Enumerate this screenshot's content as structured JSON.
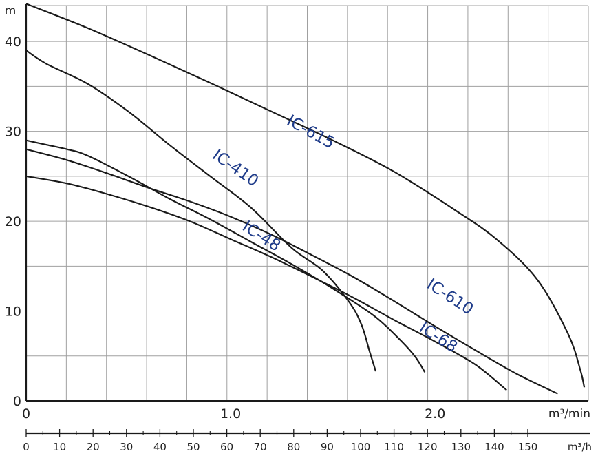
{
  "chart_data": {
    "type": "line",
    "title": "",
    "ylabel": "m",
    "xlabel": "m³/min",
    "xlabel_secondary": "m³/h",
    "ylim": [
      0,
      44
    ],
    "xlim": [
      0,
      2.75
    ],
    "grid": true,
    "y_ticks": [
      "0",
      "10",
      "20",
      "30",
      "40"
    ],
    "x_ticks": [
      {
        "label": "0",
        "value": 0
      },
      {
        "label": "1.0",
        "value": 1.0
      },
      {
        "label": "2.0",
        "value": 2.0
      }
    ],
    "x_secondary_ticks": [
      "0",
      "10",
      "20",
      "30",
      "40",
      "50",
      "60",
      "70",
      "80",
      "90",
      "100",
      "110",
      "120",
      "130",
      "140",
      "150"
    ],
    "series": [
      {
        "name": "IC-615",
        "label_rotation": 29,
        "points": [
          [
            0,
            44.2
          ],
          [
            0.3,
            41.5
          ],
          [
            0.6,
            38.5
          ],
          [
            0.9,
            35.4
          ],
          [
            1.2,
            32.2
          ],
          [
            1.5,
            29.0
          ],
          [
            1.8,
            25.5
          ],
          [
            2.1,
            21.2
          ],
          [
            2.3,
            18.0
          ],
          [
            2.5,
            13.5
          ],
          [
            2.65,
            7.5
          ],
          [
            2.71,
            3.5
          ],
          [
            2.73,
            1.5
          ]
        ]
      },
      {
        "name": "IC-410",
        "label_rotation": 35,
        "points": [
          [
            0,
            39.0
          ],
          [
            0.1,
            37.5
          ],
          [
            0.3,
            35.3
          ],
          [
            0.5,
            32.2
          ],
          [
            0.7,
            28.5
          ],
          [
            0.9,
            25.0
          ],
          [
            1.1,
            21.5
          ],
          [
            1.3,
            17.0
          ],
          [
            1.45,
            14.5
          ],
          [
            1.58,
            11.0
          ],
          [
            1.64,
            8.5
          ],
          [
            1.68,
            5.5
          ],
          [
            1.71,
            3.3
          ]
        ]
      },
      {
        "name": "IC-610",
        "label_rotation": 33,
        "points": [
          [
            0,
            28.0
          ],
          [
            0.2,
            26.8
          ],
          [
            0.4,
            25.3
          ],
          [
            0.6,
            23.7
          ],
          [
            0.8,
            22.2
          ],
          [
            1.0,
            20.5
          ],
          [
            1.2,
            18.5
          ],
          [
            1.4,
            16.2
          ],
          [
            1.6,
            13.8
          ],
          [
            1.8,
            11.1
          ],
          [
            2.0,
            8.3
          ],
          [
            2.2,
            5.6
          ],
          [
            2.4,
            3.0
          ],
          [
            2.6,
            0.8
          ]
        ]
      },
      {
        "name": "IC-48",
        "label_rotation": 33,
        "points": [
          [
            0,
            29.0
          ],
          [
            0.1,
            28.5
          ],
          [
            0.2,
            28.0
          ],
          [
            0.3,
            27.3
          ],
          [
            0.5,
            25.0
          ],
          [
            0.7,
            22.5
          ],
          [
            0.9,
            20.2
          ],
          [
            1.1,
            17.7
          ],
          [
            1.3,
            15.2
          ],
          [
            1.5,
            12.5
          ],
          [
            1.7,
            9.5
          ],
          [
            1.82,
            7.0
          ],
          [
            1.9,
            5.0
          ],
          [
            1.95,
            3.2
          ]
        ]
      },
      {
        "name": "IC-68",
        "label_rotation": 33,
        "points": [
          [
            0,
            25.0
          ],
          [
            0.2,
            24.2
          ],
          [
            0.4,
            23.0
          ],
          [
            0.6,
            21.6
          ],
          [
            0.8,
            20.0
          ],
          [
            1.0,
            18.0
          ],
          [
            1.2,
            16.0
          ],
          [
            1.4,
            13.8
          ],
          [
            1.6,
            11.5
          ],
          [
            1.8,
            9.0
          ],
          [
            2.0,
            6.6
          ],
          [
            2.2,
            4.0
          ],
          [
            2.35,
            1.2
          ]
        ]
      }
    ]
  }
}
